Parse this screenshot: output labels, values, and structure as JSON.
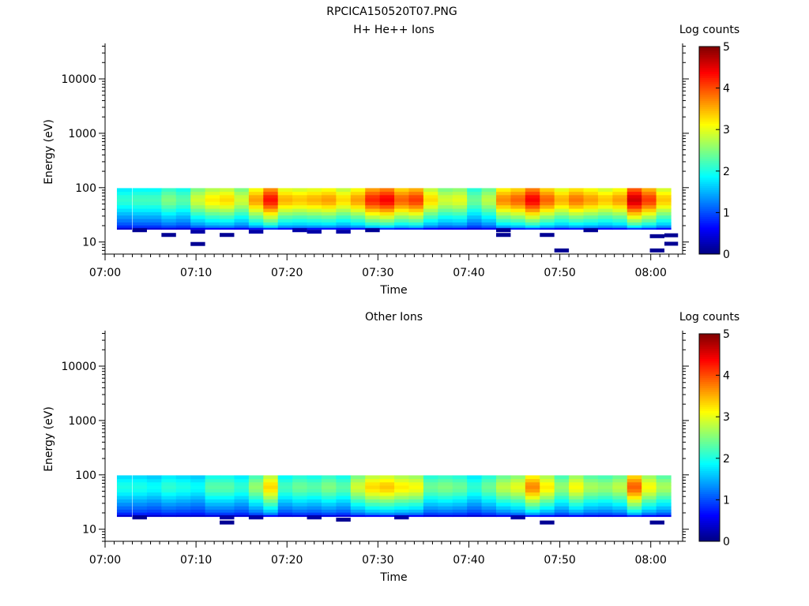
{
  "figure": {
    "title": "RPCICA150520T07.PNG"
  },
  "colors": {
    "background": "#ffffff",
    "axis": "#000000",
    "colormap": "jet"
  },
  "chart_data": [
    {
      "type": "heatmap",
      "title": "H+ He++ Ions",
      "xlabel": "Time",
      "ylabel": "Energy (eV)",
      "yscale": "log",
      "ylim": [
        6,
        45000
      ],
      "xlim": [
        0,
        63.5
      ],
      "xticks": [
        0,
        10,
        20,
        30,
        40,
        50,
        60
      ],
      "xticklabels": [
        "07:00",
        "07:10",
        "07:20",
        "07:30",
        "07:40",
        "07:50",
        "08:00"
      ],
      "yticks": [
        10,
        100,
        1000,
        10000
      ],
      "yticklabels": [
        "10",
        "100",
        "1000",
        "10000"
      ],
      "colorbar": {
        "label": "Log counts",
        "range": [
          0,
          5
        ],
        "ticks": [
          0,
          1,
          2,
          3,
          4,
          5
        ]
      },
      "energy_levels": [
        90,
        78,
        68,
        59,
        51,
        44,
        38,
        33,
        28.5,
        24.5,
        21.5,
        19,
        17.5
      ],
      "time_bins_start": [
        1.3,
        3,
        4.6,
        6.2,
        7.8,
        9.4,
        11,
        12.6,
        14.2,
        15.8,
        17.4,
        19,
        20.6,
        22.2,
        23.8,
        25.4,
        27,
        28.6,
        30.2,
        31.8,
        33.4,
        35,
        36.6,
        38.2,
        39.8,
        41.4,
        43,
        44.6,
        46.2,
        47.8,
        49.4,
        51,
        52.6,
        54.2,
        55.8,
        57.4,
        59,
        60.6
      ],
      "time_bin_width": 1.6,
      "peak_log_counts": [
        2.1,
        2.2,
        2.2,
        2.5,
        2.3,
        2.9,
        3.2,
        3.3,
        2.9,
        3.6,
        4.3,
        3.5,
        3.4,
        3.5,
        3.6,
        3.3,
        3.6,
        4.2,
        4.4,
        3.9,
        4.1,
        3.3,
        2.9,
        3.0,
        2.4,
        2.8,
        3.7,
        3.9,
        4.4,
        3.9,
        3.5,
        3.8,
        3.6,
        3.4,
        3.6,
        4.6,
        4.1,
        3.4
      ],
      "low_energy_sparse_hits": [
        {
          "t0": 3,
          "t1": 4.6,
          "e": 16.5,
          "log_counts": 0.1
        },
        {
          "t0": 6.2,
          "t1": 7.8,
          "e": 13.5,
          "log_counts": 0.1
        },
        {
          "t0": 9.4,
          "t1": 11,
          "e": 9.2,
          "log_counts": 0.1
        },
        {
          "t0": 9.4,
          "t1": 11,
          "e": 15.5,
          "log_counts": 0.2
        },
        {
          "t0": 12.6,
          "t1": 14.2,
          "e": 13.5,
          "log_counts": 0.1
        },
        {
          "t0": 15.8,
          "t1": 17.4,
          "e": 15.5,
          "log_counts": 0.2
        },
        {
          "t0": 20.6,
          "t1": 22.2,
          "e": 16.5,
          "log_counts": 0.2
        },
        {
          "t0": 22.2,
          "t1": 23.8,
          "e": 15.5,
          "log_counts": 0.2
        },
        {
          "t0": 25.4,
          "t1": 27,
          "e": 15.5,
          "log_counts": 0.2
        },
        {
          "t0": 28.6,
          "t1": 30.2,
          "e": 16.5,
          "log_counts": 0.1
        },
        {
          "t0": 43,
          "t1": 44.6,
          "e": 16.5,
          "log_counts": 0.1
        },
        {
          "t0": 43,
          "t1": 44.6,
          "e": 13.5,
          "log_counts": 0.1
        },
        {
          "t0": 47.8,
          "t1": 49.4,
          "e": 13.5,
          "log_counts": 0.1
        },
        {
          "t0": 49.4,
          "t1": 51,
          "e": 7,
          "log_counts": 0.1
        },
        {
          "t0": 52.6,
          "t1": 54.2,
          "e": 16.5,
          "log_counts": 0.1
        },
        {
          "t0": 59.9,
          "t1": 61.5,
          "e": 12.8,
          "log_counts": 0.1
        },
        {
          "t0": 59.9,
          "t1": 61.5,
          "e": 7,
          "log_counts": 0.1
        },
        {
          "t0": 61.5,
          "t1": 63,
          "e": 13.3,
          "log_counts": 0.1
        },
        {
          "t0": 61.5,
          "t1": 63,
          "e": 9.3,
          "log_counts": 0.1
        }
      ]
    },
    {
      "type": "heatmap",
      "title": "Other Ions",
      "xlabel": "Time",
      "ylabel": "Energy (eV)",
      "yscale": "log",
      "ylim": [
        6,
        45000
      ],
      "xlim": [
        0,
        63.5
      ],
      "xticks": [
        0,
        10,
        20,
        30,
        40,
        50,
        60
      ],
      "xticklabels": [
        "07:00",
        "07:10",
        "07:20",
        "07:30",
        "07:40",
        "07:50",
        "08:00"
      ],
      "yticks": [
        10,
        100,
        1000,
        10000
      ],
      "yticklabels": [
        "10",
        "100",
        "1000",
        "10000"
      ],
      "colorbar": {
        "label": "Log counts",
        "range": [
          0,
          5
        ],
        "ticks": [
          0,
          1,
          2,
          3,
          4,
          5
        ]
      },
      "energy_levels": [
        90,
        78,
        68,
        59,
        51,
        44,
        38,
        33,
        28.5,
        24.5,
        21.5,
        19,
        17.5
      ],
      "time_bins_start": [
        1.3,
        3,
        4.6,
        6.2,
        7.8,
        9.4,
        11,
        12.6,
        14.2,
        15.8,
        17.4,
        19,
        20.6,
        22.2,
        23.8,
        25.4,
        27,
        28.6,
        30.2,
        31.8,
        33.4,
        35,
        36.6,
        38.2,
        39.8,
        41.4,
        43,
        44.6,
        46.2,
        47.8,
        49.4,
        51,
        52.6,
        54.2,
        55.8,
        57.4,
        59,
        60.6
      ],
      "time_bin_width": 1.6,
      "peak_log_counts": [
        2.0,
        2.0,
        1.9,
        2.1,
        2.0,
        1.9,
        2.3,
        2.3,
        2.1,
        2.6,
        3.3,
        2.2,
        2.4,
        2.3,
        2.5,
        2.3,
        2.9,
        3.3,
        3.4,
        3.2,
        3.1,
        2.4,
        2.5,
        2.4,
        2.1,
        2.4,
        2.8,
        3.0,
        3.7,
        3.2,
        2.6,
        3.1,
        2.7,
        2.6,
        2.8,
        3.9,
        3.1,
        2.7
      ],
      "low_energy_sparse_hits": [
        {
          "t0": 3,
          "t1": 4.6,
          "e": 16.5,
          "log_counts": 0.1
        },
        {
          "t0": 12.6,
          "t1": 14.2,
          "e": 13.3,
          "log_counts": 0.1
        },
        {
          "t0": 12.6,
          "t1": 14.2,
          "e": 16.5,
          "log_counts": 0.2
        },
        {
          "t0": 15.8,
          "t1": 17.4,
          "e": 16.5,
          "log_counts": 0.2
        },
        {
          "t0": 22.2,
          "t1": 23.8,
          "e": 16.5,
          "log_counts": 0.2
        },
        {
          "t0": 25.4,
          "t1": 27,
          "e": 15,
          "log_counts": 0.1
        },
        {
          "t0": 31.8,
          "t1": 33.4,
          "e": 16.5,
          "log_counts": 0.2
        },
        {
          "t0": 44.6,
          "t1": 46.2,
          "e": 16.5,
          "log_counts": 0.2
        },
        {
          "t0": 47.8,
          "t1": 49.4,
          "e": 13.3,
          "log_counts": 0.1
        },
        {
          "t0": 59.9,
          "t1": 61.5,
          "e": 13.3,
          "log_counts": 0.1
        }
      ]
    }
  ]
}
